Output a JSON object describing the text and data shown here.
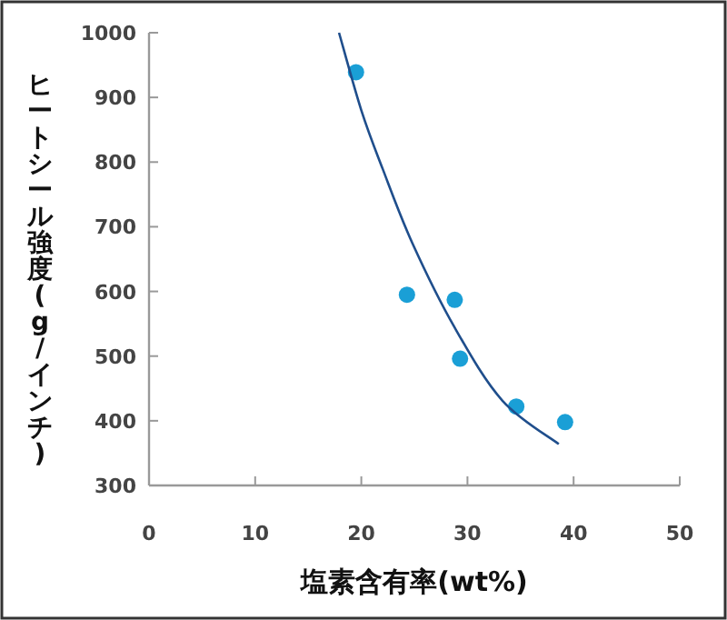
{
  "chart_data": {
    "type": "scatter",
    "xlabel": "塩素含有率(wt%)",
    "ylabel": "ヒートシール強度(g/インチ)",
    "xlim": [
      0,
      50
    ],
    "xticks": [
      0,
      10,
      20,
      30,
      40,
      50
    ],
    "ylim": [
      300,
      1000
    ],
    "yticks": [
      300,
      400,
      500,
      600,
      700,
      800,
      900,
      1000
    ],
    "grid": false,
    "series": [
      {
        "marker": "circle",
        "color": "#1a9fd6",
        "x": [
          19.5,
          24.3,
          28.8,
          29.3,
          34.6,
          39.2
        ],
        "values": [
          939,
          595,
          587,
          496,
          422,
          398
        ]
      },
      {
        "type": "line",
        "marker": "none",
        "color": "#1f4e8c",
        "x": [
          17.9,
          20,
          22,
          24.8,
          28.8,
          33.3,
          38.6
        ],
        "values": [
          1000,
          880,
          790,
          675,
          544,
          431,
          364
        ]
      }
    ]
  }
}
